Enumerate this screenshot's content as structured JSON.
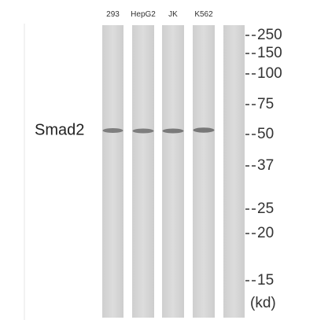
{
  "lanes": [
    "293",
    "HepG2",
    "JK",
    "K562"
  ],
  "protein": "Smad2",
  "markers": [
    "250",
    "150",
    "100",
    "75",
    "50",
    "37",
    "25",
    "20",
    "15"
  ],
  "unit": "(kd)"
}
